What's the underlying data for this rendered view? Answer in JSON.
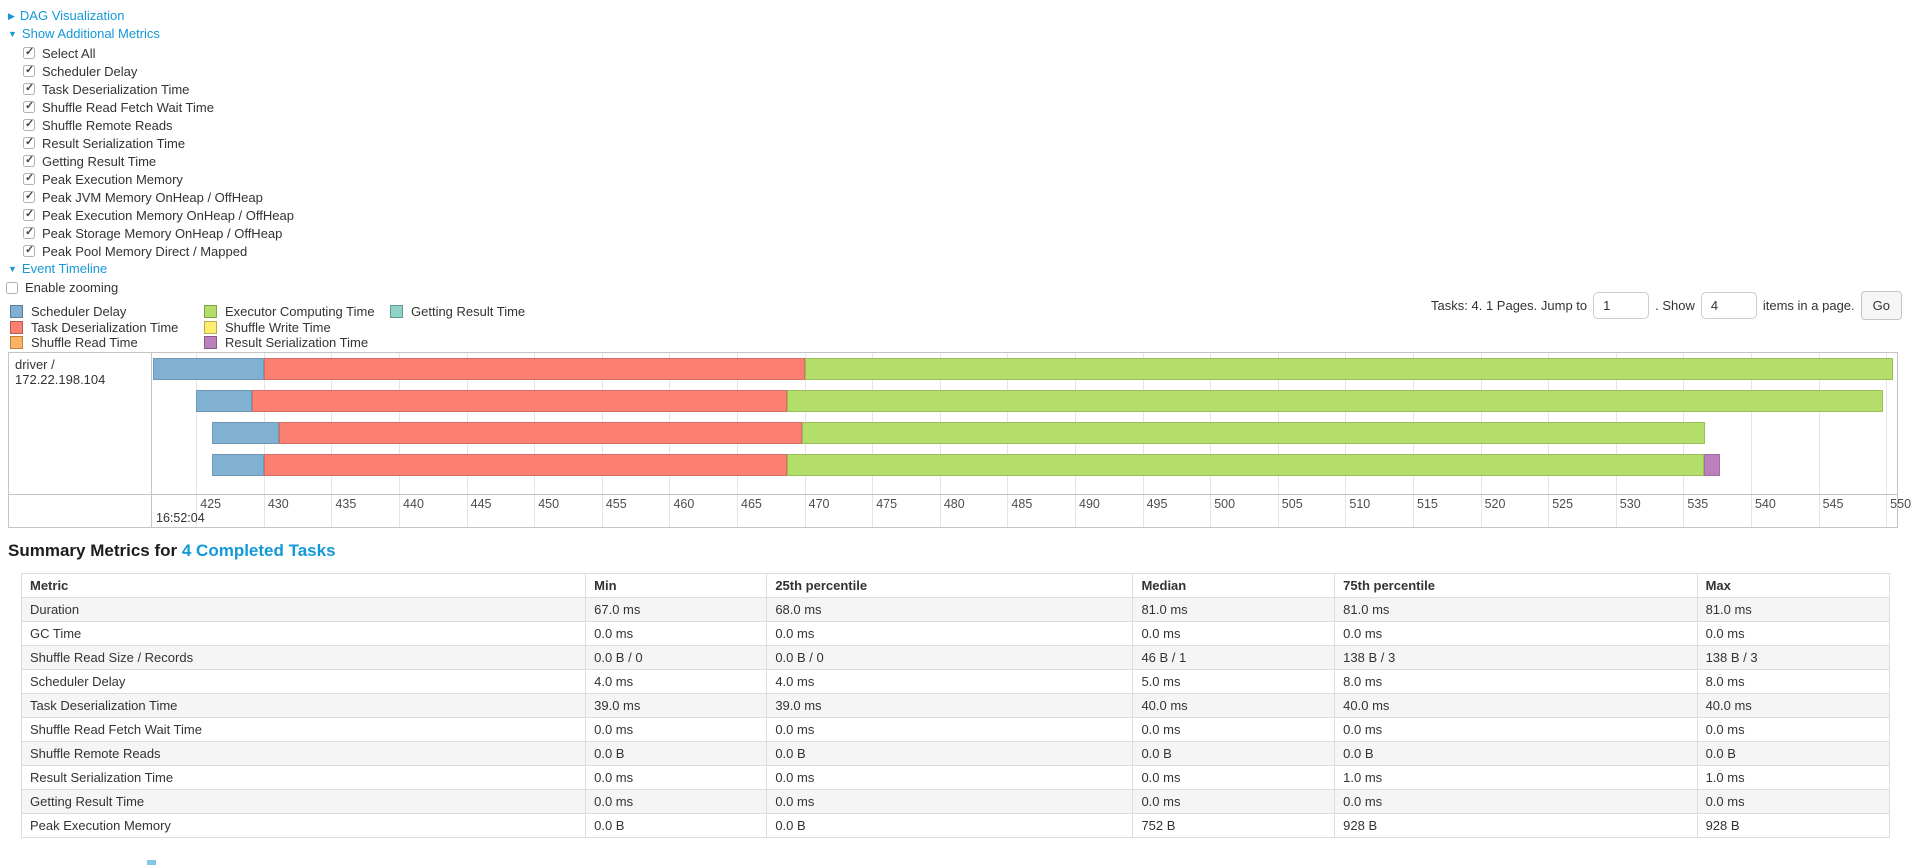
{
  "toggles": {
    "dag": "DAG Visualization",
    "metrics": "Show Additional Metrics",
    "timeline": "Event Timeline"
  },
  "icons": {
    "collapsed": "▶",
    "expanded": "▼"
  },
  "metrics_panel": {
    "checkboxes": [
      {
        "label": "Select All",
        "checked": true
      },
      {
        "label": "Scheduler Delay",
        "checked": true
      },
      {
        "label": "Task Deserialization Time",
        "checked": true
      },
      {
        "label": "Shuffle Read Fetch Wait Time",
        "checked": true
      },
      {
        "label": "Shuffle Remote Reads",
        "checked": true
      },
      {
        "label": "Result Serialization Time",
        "checked": true
      },
      {
        "label": "Getting Result Time",
        "checked": true
      },
      {
        "label": "Peak Execution Memory",
        "checked": true
      },
      {
        "label": "Peak JVM Memory OnHeap / OffHeap",
        "checked": true
      },
      {
        "label": "Peak Execution Memory OnHeap / OffHeap",
        "checked": true
      },
      {
        "label": "Peak Storage Memory OnHeap / OffHeap",
        "checked": true
      },
      {
        "label": "Peak Pool Memory Direct / Mapped",
        "checked": true
      }
    ],
    "enable_zooming": {
      "label": "Enable zooming",
      "checked": false
    }
  },
  "legend": {
    "columns": [
      [
        {
          "key": "scheduler_delay",
          "label": "Scheduler Delay"
        },
        {
          "key": "deserialization",
          "label": "Task Deserialization Time"
        },
        {
          "key": "shuffle_read",
          "label": "Shuffle Read Time"
        }
      ],
      [
        {
          "key": "executor_computing",
          "label": "Executor Computing Time"
        },
        {
          "key": "shuffle_write",
          "label": "Shuffle Write Time"
        },
        {
          "key": "result_serialization",
          "label": "Result Serialization Time"
        }
      ],
      [
        {
          "key": "getting_result",
          "label": "Getting Result Time"
        }
      ]
    ]
  },
  "pagination": {
    "prefix": "Tasks: 4. 1 Pages. Jump to",
    "jump_value": "1",
    "mid": ". Show",
    "show_value": "4",
    "suffix": "items in a page.",
    "go": "Go"
  },
  "chart_data": {
    "type": "timeline",
    "group_label": "driver / 172.22.198.104",
    "window": {
      "min": 421.8,
      "max": 550.8
    },
    "ticks": [
      425,
      430,
      435,
      440,
      445,
      450,
      455,
      460,
      465,
      470,
      475,
      480,
      485,
      490,
      495,
      500,
      505,
      510,
      515,
      520,
      525,
      530,
      535,
      540,
      545,
      550
    ],
    "major_label": "16:52:04",
    "colors": {
      "scheduler_delay": "#80B1D3",
      "deserialization": "#FB8072",
      "shuffle_read": "#FDB462",
      "executor_computing": "#B3DE69",
      "shuffle_write": "#FFED6F",
      "result_serialization": "#BC80BD",
      "getting_result": "#8DD3C7"
    },
    "tasks": [
      {
        "segments": [
          {
            "key": "scheduler_delay",
            "start": 421.8,
            "end": 430.0
          },
          {
            "key": "deserialization",
            "start": 430.0,
            "end": 470.0
          },
          {
            "key": "executor_computing",
            "start": 470.0,
            "end": 550.5
          }
        ]
      },
      {
        "segments": [
          {
            "key": "scheduler_delay",
            "start": 425.0,
            "end": 429.1
          },
          {
            "key": "deserialization",
            "start": 429.1,
            "end": 468.7
          },
          {
            "key": "executor_computing",
            "start": 468.7,
            "end": 549.8
          }
        ]
      },
      {
        "segments": [
          {
            "key": "scheduler_delay",
            "start": 426.2,
            "end": 431.1
          },
          {
            "key": "deserialization",
            "start": 431.1,
            "end": 469.8
          },
          {
            "key": "executor_computing",
            "start": 469.8,
            "end": 536.6
          }
        ]
      },
      {
        "segments": [
          {
            "key": "scheduler_delay",
            "start": 426.2,
            "end": 430.0
          },
          {
            "key": "deserialization",
            "start": 430.0,
            "end": 468.7
          },
          {
            "key": "executor_computing",
            "start": 468.7,
            "end": 536.5
          },
          {
            "key": "result_serialization",
            "start": 536.5,
            "end": 537.7
          }
        ]
      }
    ]
  },
  "summary": {
    "title_prefix": "Summary Metrics for",
    "title_link": "4 Completed Tasks",
    "columns": [
      "Metric",
      "Min",
      "25th percentile",
      "Median",
      "75th percentile",
      "Max"
    ],
    "col_widths_pct": [
      30.2,
      9.7,
      19.6,
      10.8,
      19.4,
      10.3
    ],
    "rows": [
      {
        "metric": "Duration",
        "values": [
          "67.0 ms",
          "68.0 ms",
          "81.0 ms",
          "81.0 ms",
          "81.0 ms"
        ]
      },
      {
        "metric": "GC Time",
        "values": [
          "0.0 ms",
          "0.0 ms",
          "0.0 ms",
          "0.0 ms",
          "0.0 ms"
        ]
      },
      {
        "metric": "Shuffle Read Size / Records",
        "values": [
          "0.0 B / 0",
          "0.0 B / 0",
          "46 B / 1",
          "138 B / 3",
          "138 B / 3"
        ]
      },
      {
        "metric": "Scheduler Delay",
        "values": [
          "4.0 ms",
          "4.0 ms",
          "5.0 ms",
          "8.0 ms",
          "8.0 ms"
        ]
      },
      {
        "metric": "Task Deserialization Time",
        "values": [
          "39.0 ms",
          "39.0 ms",
          "40.0 ms",
          "40.0 ms",
          "40.0 ms"
        ]
      },
      {
        "metric": "Shuffle Read Fetch Wait Time",
        "values": [
          "0.0 ms",
          "0.0 ms",
          "0.0 ms",
          "0.0 ms",
          "0.0 ms"
        ]
      },
      {
        "metric": "Shuffle Remote Reads",
        "values": [
          "0.0 B",
          "0.0 B",
          "0.0 B",
          "0.0 B",
          "0.0 B"
        ]
      },
      {
        "metric": "Result Serialization Time",
        "values": [
          "0.0 ms",
          "0.0 ms",
          "0.0 ms",
          "1.0 ms",
          "1.0 ms"
        ]
      },
      {
        "metric": "Getting Result Time",
        "values": [
          "0.0 ms",
          "0.0 ms",
          "0.0 ms",
          "0.0 ms",
          "0.0 ms"
        ]
      },
      {
        "metric": "Peak Execution Memory",
        "values": [
          "0.0 B",
          "0.0 B",
          "752 B",
          "928 B",
          "928 B"
        ]
      }
    ]
  }
}
